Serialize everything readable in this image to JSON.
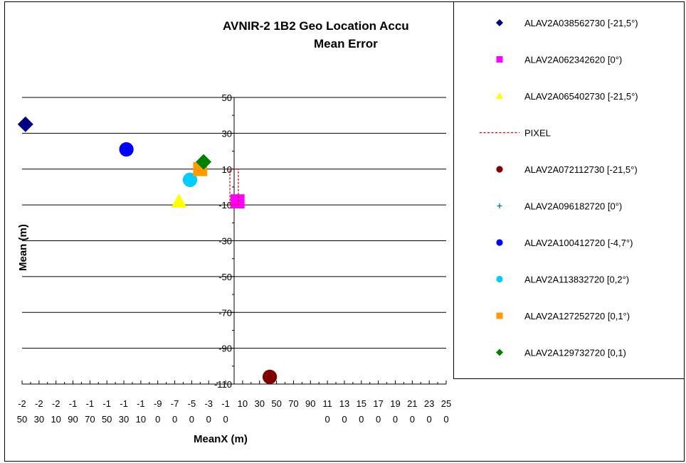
{
  "chart_data": {
    "type": "scatter",
    "title": "AVNIR-2 1B2 Geo Location Accu",
    "subtitle": "Mean Error",
    "xlabel": "MeanX (m)",
    "ylabel": "Mean (m)",
    "xlim": [
      -250,
      250
    ],
    "ylim": [
      -110,
      50
    ],
    "grid": "horizontal",
    "legend_position": "right",
    "y_ticks": [
      "50",
      "30",
      "10",
      "-10",
      "-30",
      "-50",
      "-70",
      "-90",
      "-110"
    ],
    "x_ticks": [
      [
        "-2",
        "50"
      ],
      [
        "-2",
        "30"
      ],
      [
        "-2",
        "10"
      ],
      [
        "-1",
        "90"
      ],
      [
        "-1",
        "70"
      ],
      [
        "-1",
        "50"
      ],
      [
        "-1",
        "30"
      ],
      [
        "-1",
        "10"
      ],
      [
        "-9",
        "0"
      ],
      [
        "-7",
        "0"
      ],
      [
        "-5",
        "0"
      ],
      [
        "-3",
        "0"
      ],
      [
        "-1",
        "0"
      ],
      [
        "10",
        ""
      ],
      [
        "30",
        ""
      ],
      [
        "50",
        ""
      ],
      [
        "70",
        ""
      ],
      [
        "90",
        ""
      ],
      [
        "11",
        "0"
      ],
      [
        "13",
        "0"
      ],
      [
        "15",
        "0"
      ],
      [
        "17",
        "0"
      ],
      [
        "19",
        "0"
      ],
      [
        "21",
        "0"
      ],
      [
        "23",
        "0"
      ],
      [
        "25",
        "0"
      ]
    ],
    "series": [
      {
        "name": "ALAV2A038562730 [-21,5°)",
        "marker": "diamond",
        "color": "#000080",
        "x": -246,
        "y": 35
      },
      {
        "name": "ALAV2A062342620 [0°)",
        "marker": "square",
        "color": "#FF00FF",
        "x": 4,
        "y": -8
      },
      {
        "name": "ALAV2A065402730 [-21,5°)",
        "marker": "triangle",
        "color": "#FFFF00",
        "x": -65,
        "y": -8
      },
      {
        "name": "PIXEL",
        "marker": "dashed-line",
        "color": "#CC0000",
        "points": [
          [
            -5,
            10
          ],
          [
            5,
            10
          ],
          [
            5,
            -10
          ],
          [
            -5,
            -10
          ],
          [
            -5,
            10
          ]
        ]
      },
      {
        "name": "ALAV2A072112730 [-21,5°)",
        "marker": "circle",
        "color": "#800000",
        "x": 42,
        "y": -106
      },
      {
        "name": "ALAV2A096182720 [0°)",
        "marker": "plus",
        "color": "#008080",
        "points": []
      },
      {
        "name": "ALAV2A100412720 [-4,7°)",
        "marker": "circle",
        "color": "#0000FF",
        "x": -127,
        "y": 21
      },
      {
        "name": "ALAV2A113832720 [0,2°)",
        "marker": "circle",
        "color": "#00CCFF",
        "x": -52,
        "y": 4
      },
      {
        "name": "ALAV2A127252720 [0,1°)",
        "marker": "square",
        "color": "#FF9900",
        "x": -40,
        "y": 10
      },
      {
        "name": "ALAV2A129732720 [0,1)",
        "marker": "diamond",
        "color": "#008000",
        "x": -36,
        "y": 14
      }
    ]
  }
}
